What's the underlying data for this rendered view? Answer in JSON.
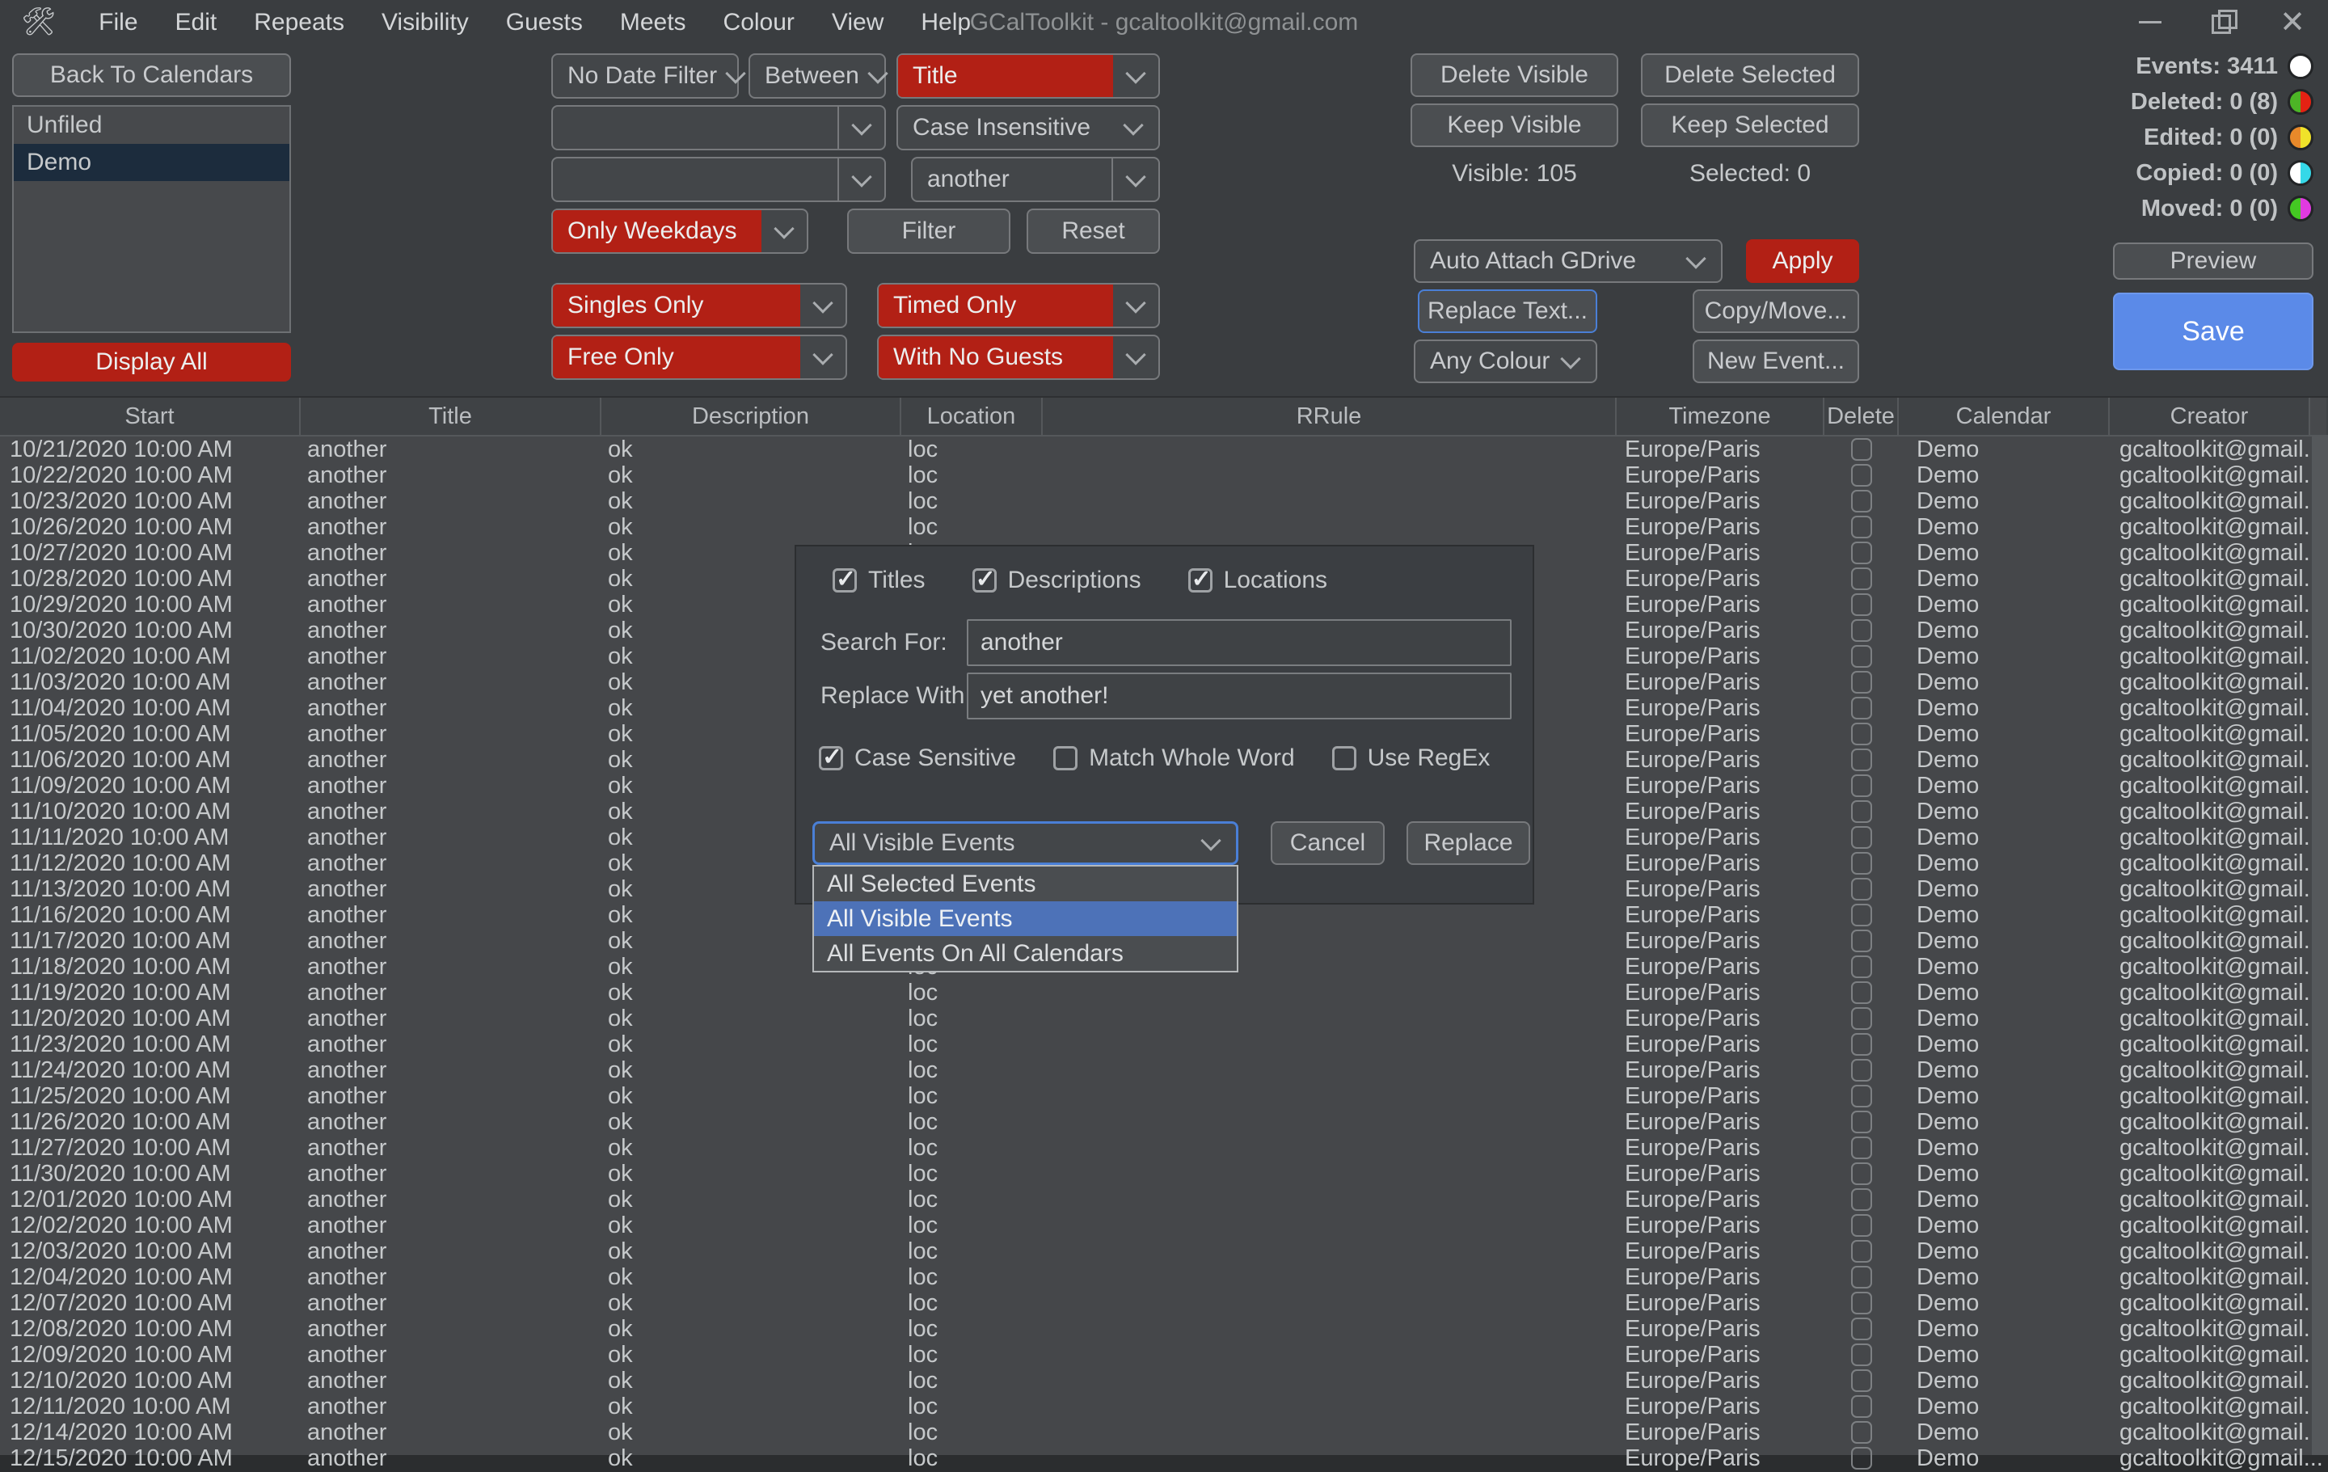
{
  "window": {
    "title": "GCalToolkit - gcaltoolkit@gmail.com",
    "controls": {
      "minimize": "minimize",
      "restore": "restore",
      "close": "close"
    }
  },
  "menu": {
    "items": [
      "File",
      "Edit",
      "Repeats",
      "Visibility",
      "Guests",
      "Meets",
      "Colour",
      "View",
      "Help"
    ]
  },
  "left_panel": {
    "back_button": "Back To Calendars",
    "calendars": [
      {
        "name": "Unfiled",
        "selected": false
      },
      {
        "name": "Demo",
        "selected": true
      }
    ],
    "display_all_button": "Display All"
  },
  "filters": {
    "date_filter": "No Date Filter",
    "date_mode": "Between",
    "field": "Title",
    "from_value": "",
    "to_value": "",
    "case_mode": "Case Insensitive",
    "search_text": "another",
    "weekday_filter": "Only Weekdays",
    "filter_button": "Filter",
    "reset_button": "Reset",
    "singles": "Singles Only",
    "timed": "Timed Only",
    "free": "Free Only",
    "guests": "With No Guests"
  },
  "actions": {
    "delete_visible": "Delete Visible",
    "delete_selected": "Delete Selected",
    "keep_visible": "Keep Visible",
    "keep_selected": "Keep Selected",
    "visible_count": "Visible: 105",
    "selected_count": "Selected: 0",
    "gdrive_select": "Auto Attach GDrive",
    "apply_button": "Apply",
    "replace_text_button": "Replace Text...",
    "copy_move_button": "Copy/Move...",
    "colour_select": "Any Colour",
    "new_event_button": "New Event...",
    "preview_button": "Preview",
    "save_button": "Save"
  },
  "stats": {
    "items": [
      {
        "label": "Events: 3411",
        "left_color": "#ffffff",
        "right_color": "#ffffff"
      },
      {
        "label": "Deleted: 0 (8)",
        "left_color": "#4db526",
        "right_color": "#e32213"
      },
      {
        "label": "Edited: 0 (0)",
        "left_color": "#e8892a",
        "right_color": "#f0e22a"
      },
      {
        "label": "Copied: 0 (0)",
        "left_color": "#ffffff",
        "right_color": "#35d8e8"
      },
      {
        "label": "Moved: 0 (0)",
        "left_color": "#44c823",
        "right_color": "#e03ae0"
      }
    ]
  },
  "table": {
    "columns": [
      "Start",
      "Title",
      "Description",
      "Location",
      "RRule",
      "Timezone",
      "Delete",
      "Calendar",
      "Creator"
    ],
    "row_defaults": {
      "title": "another",
      "description": "ok",
      "location": "loc",
      "rrule": "",
      "timezone": "Europe/Paris",
      "delete_checked": false,
      "calendar": "Demo",
      "creator": "gcaltoolkit@gmail..."
    },
    "start_times": [
      "10/21/2020 10:00 AM",
      "10/22/2020 10:00 AM",
      "10/23/2020 10:00 AM",
      "10/26/2020 10:00 AM",
      "10/27/2020 10:00 AM",
      "10/28/2020 10:00 AM",
      "10/29/2020 10:00 AM",
      "10/30/2020 10:00 AM",
      "11/02/2020 10:00 AM",
      "11/03/2020 10:00 AM",
      "11/04/2020 10:00 AM",
      "11/05/2020 10:00 AM",
      "11/06/2020 10:00 AM",
      "11/09/2020 10:00 AM",
      "11/10/2020 10:00 AM",
      "11/11/2020 10:00 AM",
      "11/12/2020 10:00 AM",
      "11/13/2020 10:00 AM",
      "11/16/2020 10:00 AM",
      "11/17/2020 10:00 AM",
      "11/18/2020 10:00 AM",
      "11/19/2020 10:00 AM",
      "11/20/2020 10:00 AM",
      "11/23/2020 10:00 AM",
      "11/24/2020 10:00 AM",
      "11/25/2020 10:00 AM",
      "11/26/2020 10:00 AM",
      "11/27/2020 10:00 AM",
      "11/30/2020 10:00 AM",
      "12/01/2020 10:00 AM",
      "12/02/2020 10:00 AM",
      "12/03/2020 10:00 AM",
      "12/04/2020 10:00 AM",
      "12/07/2020 10:00 AM",
      "12/08/2020 10:00 AM",
      "12/09/2020 10:00 AM",
      "12/10/2020 10:00 AM",
      "12/11/2020 10:00 AM",
      "12/14/2020 10:00 AM",
      "12/15/2020 10:00 AM"
    ]
  },
  "dialog": {
    "scope_checkboxes": [
      {
        "label": "Titles",
        "checked": true
      },
      {
        "label": "Descriptions",
        "checked": true
      },
      {
        "label": "Locations",
        "checked": true
      }
    ],
    "search_label": "Search For:",
    "search_value": "another",
    "replace_label": "Replace With",
    "replace_value": "yet another!",
    "option_checkboxes": [
      {
        "label": "Case Sensitive",
        "checked": true
      },
      {
        "label": "Match Whole Word",
        "checked": false
      },
      {
        "label": "Use RegEx",
        "checked": false
      }
    ],
    "target_select": {
      "value": "All Visible Events",
      "options": [
        "All Selected Events",
        "All Visible Events",
        "All Events On All Calendars"
      ],
      "highlighted": "All Visible Events"
    },
    "cancel_button": "Cancel",
    "replace_button": "Replace"
  },
  "colors": {
    "accent_red": "#b22015",
    "save_blue": "#5b8ae8",
    "list_highlight_blue": "#4d72b8",
    "calendar_selection_navy": "#1c2c3d"
  }
}
